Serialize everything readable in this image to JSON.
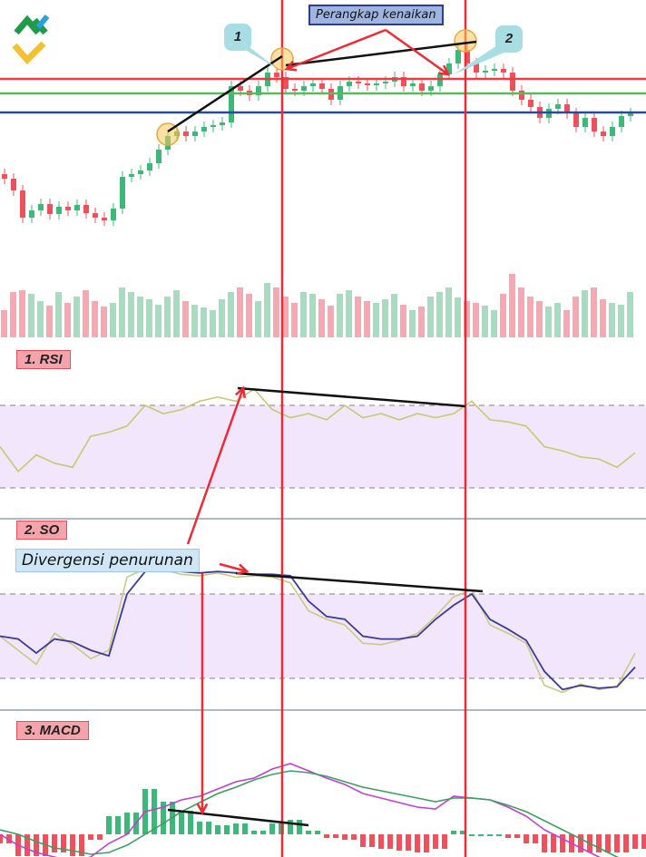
{
  "annotations": {
    "trap_label": "Perangkap kenaikan",
    "divergence_label": "Divergensi penurunan",
    "callout_1": "1",
    "callout_2": "2"
  },
  "panels": {
    "rsi_label": "1. RSI",
    "so_label": "2. SO",
    "macd_label": "3. MACD"
  },
  "colors": {
    "bull": "#3cb878",
    "bear": "#f0505a",
    "bull_volume": "#a8dcc0",
    "bear_volume": "#f8a8b0",
    "resistance": "#f03a44",
    "mid_level": "#5cb85c",
    "support": "#2a4a9f",
    "marker_line": "#f02a34",
    "band_fill": "#f1e6fb",
    "rsi_line": "#c8c870",
    "so_k": "#c8cc80",
    "so_d": "#3a3a9a",
    "macd_line": "#c040d0",
    "signal_line": "#3aa060"
  },
  "chart_data": [
    {
      "type": "candlestick",
      "title": "",
      "price_units": "arbitrary",
      "closes": [
        103,
        90,
        60,
        68,
        75,
        64,
        72,
        68,
        74,
        65,
        60,
        57,
        70,
        105,
        108,
        112,
        120,
        135,
        150,
        155,
        150,
        155,
        160,
        162,
        165,
        205,
        200,
        195,
        205,
        220,
        215,
        202,
        200,
        205,
        208,
        202,
        190,
        205,
        210,
        208,
        206,
        208,
        210,
        215,
        205,
        208,
        200,
        205,
        218,
        230,
        245,
        230,
        220,
        222,
        224,
        220,
        200,
        190,
        182,
        170,
        180,
        185,
        175,
        160,
        170,
        155,
        150,
        160,
        172,
        175
      ],
      "volume": [
        30,
        50,
        52,
        48,
        40,
        35,
        50,
        38,
        45,
        52,
        40,
        34,
        38,
        55,
        50,
        45,
        42,
        36,
        45,
        52,
        40,
        36,
        33,
        30,
        42,
        50,
        55,
        48,
        40,
        60,
        55,
        45,
        38,
        50,
        48,
        42,
        35,
        48,
        52,
        45,
        40,
        38,
        42,
        48,
        36,
        30,
        34,
        45,
        50,
        55,
        44,
        40,
        38,
        35,
        30,
        48,
        70,
        55,
        45,
        40,
        34,
        38,
        30,
        45,
        52,
        55,
        42,
        38,
        36,
        50
      ],
      "levels": [
        "resistance",
        "mid",
        "support"
      ]
    },
    {
      "type": "line",
      "name": "",
      "panel": "RSI",
      "ylim": [
        0,
        100
      ],
      "bands": [
        30,
        70
      ],
      "values": [
        50,
        38,
        46,
        42,
        40,
        55,
        57,
        60,
        70,
        66,
        68,
        72,
        74,
        72,
        78,
        68,
        64,
        66,
        63,
        70,
        64,
        66,
        63,
        66,
        64,
        66,
        72,
        63,
        62,
        60,
        50,
        48,
        45,
        44,
        40,
        47
      ]
    },
    {
      "type": "line",
      "panel": "SO",
      "ylim": [
        0,
        100
      ],
      "bands": [
        20,
        80
      ],
      "series": [
        {
          "key": "k",
          "values": [
            50,
            40,
            30,
            52,
            44,
            34,
            40,
            92,
            98,
            97,
            94,
            93,
            95,
            92,
            93,
            92,
            88,
            68,
            62,
            58,
            45,
            44,
            47,
            52,
            64,
            78,
            83,
            58,
            52,
            45,
            15,
            10,
            16,
            12,
            14,
            38
          ]
        },
        {
          "key": "d",
          "values": [
            50,
            48,
            38,
            48,
            46,
            40,
            36,
            80,
            96,
            97,
            96,
            95,
            96,
            95,
            94,
            94,
            93,
            75,
            64,
            62,
            50,
            48,
            48,
            50,
            62,
            72,
            80,
            62,
            55,
            47,
            25,
            12,
            15,
            13,
            14,
            28
          ]
        }
      ]
    },
    {
      "type": "line",
      "panel": "MACD",
      "series": [
        {
          "key": "macd",
          "values": [
            0,
            -12,
            -20,
            -25,
            -30,
            -25,
            -10,
            0,
            25,
            30,
            38,
            42,
            50,
            58,
            62,
            72,
            78,
            70,
            62,
            55,
            45,
            40,
            35,
            30,
            28,
            42,
            40,
            38,
            30,
            20,
            5,
            -5,
            -15,
            -25,
            -35,
            -40
          ]
        },
        {
          "key": "signal",
          "values": [
            5,
            0,
            -8,
            -15,
            -18,
            -22,
            -20,
            -12,
            0,
            12,
            25,
            35,
            45,
            52,
            60,
            66,
            70,
            68,
            64,
            58,
            52,
            48,
            44,
            40,
            36,
            40,
            40,
            38,
            32,
            25,
            15,
            5,
            -5,
            -15,
            -25,
            -32
          ]
        }
      ],
      "histogram": [
        -5,
        -12,
        -12,
        -10,
        -12,
        -3,
        10,
        12,
        25,
        18,
        13,
        7,
        5,
        6,
        2,
        6,
        8,
        2,
        -2,
        -3,
        -7,
        -8,
        -9,
        -10,
        -8,
        2,
        0,
        0,
        -2,
        -5,
        -10,
        -10,
        -10,
        -10,
        -10,
        -8
      ]
    }
  ]
}
